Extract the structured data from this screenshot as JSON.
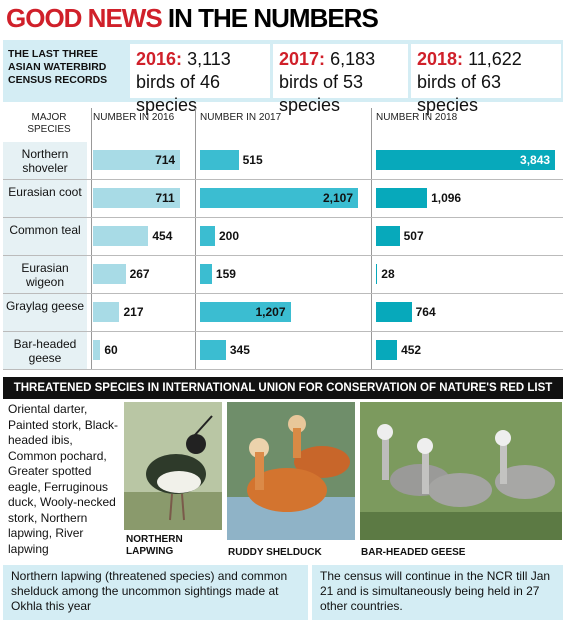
{
  "header": {
    "title_highlight": "GOOD NEWS",
    "title_rest": "IN THE NUMBERS"
  },
  "census": {
    "label": "THE LAST THREE ASIAN WATERBIRD CENSUS RECORDS",
    "records": [
      {
        "year": "2016:",
        "text": "3,113 birds of 46 species"
      },
      {
        "year": "2017:",
        "text": "6,183 birds of 53 species"
      },
      {
        "year": "2018:",
        "text": "11,622 birds of 63 species"
      }
    ]
  },
  "chart": {
    "species_header": "MAJOR SPECIES",
    "species": [
      "Northern shoveler",
      "Eurasian coot",
      "Common teal",
      "Eurasian wigeon",
      "Graylag geese",
      "Bar-headed geese"
    ],
    "columns": [
      {
        "header": "NUMBER IN 2016",
        "color": "#a8dbe6",
        "values": [
          714,
          711,
          454,
          267,
          217,
          60
        ],
        "value_labels": [
          "714",
          "711",
          "454",
          "267",
          "217",
          "60"
        ]
      },
      {
        "header": "NUMBER IN 2017",
        "color": "#3bbdd1",
        "values": [
          515,
          2107,
          200,
          159,
          1207,
          345
        ],
        "value_labels": [
          "515",
          "2,107",
          "200",
          "159",
          "1,207",
          "345"
        ]
      },
      {
        "header": "NUMBER IN 2018",
        "color": "#07a9bb",
        "values": [
          3843,
          1096,
          507,
          28,
          764,
          452
        ],
        "value_labels": [
          "3,843",
          "1,096",
          "507",
          "28",
          "764",
          "452"
        ]
      }
    ]
  },
  "red_list": {
    "title": "THREATENED SPECIES IN INTERNATIONAL UNION FOR CONSERVATION OF NATURE'S RED LIST",
    "species_text": "Oriental darter, Painted stork, Black-headed ibis, Common pochard, Greater spotted eagle, Ferruginous duck, Wooly-necked stork, Northern lapwing, River lapwing",
    "photos": [
      "NORTHERN LAPWING",
      "RUDDY SHELDUCK",
      "BAR-HEADED GEESE"
    ]
  },
  "footer": [
    "Northern lapwing (threatened species) and common shelduck among the uncommon sightings made at Okhla this year",
    "The census will continue in the NCR till Jan 21 and is simultaneously being held in 27 other countries."
  ]
}
